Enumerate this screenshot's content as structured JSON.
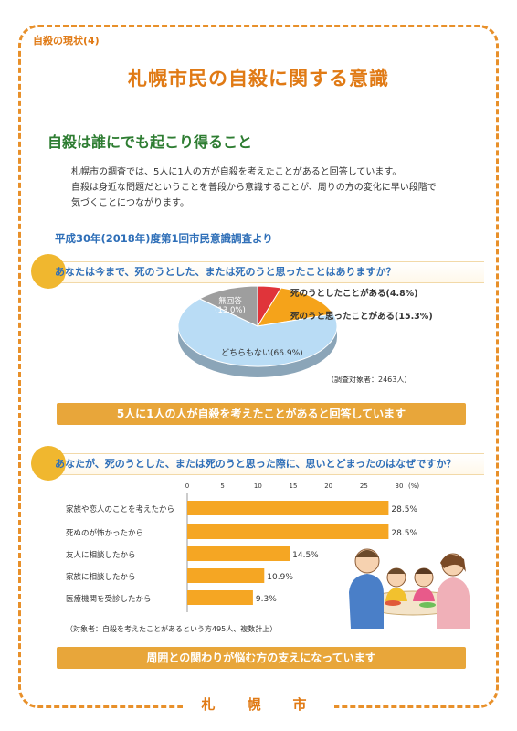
{
  "tag": "自殺の現状(4)",
  "title": "札幌市民の自殺に関する意識",
  "section_heading": "自殺は誰にでも起こり得ること",
  "intro": [
    "札幌市の調査では、5人に1人の方が自殺を考えたことがあると回答しています。",
    "自殺は身近な問題だということを普段から意識することが、周りの方の変化に早い段階で",
    "気づくことにつながります。"
  ],
  "survey_title": "平成30年(2018年)度第1回市民意識調査より",
  "q1": "あなたは今まで、死のうとした、または死のうと思ったことはありますか？",
  "q2": "あなたが、死のうとした、または死のうと思った際に、思いとどまったのはなぜですか？",
  "banner1": "5人に1人の人が自殺を考えたことがあると回答しています",
  "banner2": "周囲との関わりが悩む方の支えになっています",
  "pie_note": "（調査対象者：2463人）",
  "bar_note": "（対象者：自殺を考えたことがあるという方495人、複数計上）",
  "footer": "札　幌　市",
  "colors": {
    "accent": "#e07a15",
    "green": "#2e7d32",
    "blue": "#2f6fb8",
    "bar": "#f5a623",
    "pie_red": "#e0343a",
    "pie_orange": "#f5a31a",
    "pie_blue": "#b9dcf5",
    "pie_gray": "#9e9e9e"
  },
  "chart_data": [
    {
      "type": "pie",
      "slices": [
        {
          "label": "死のうとしたことがある",
          "value_label": "(4.8%)",
          "value": 4.8,
          "color": "#e0343a"
        },
        {
          "label": "死のうと思ったことがある",
          "value_label": "(15.3%)",
          "value": 15.3,
          "color": "#f5a31a"
        },
        {
          "label": "どちらもない",
          "value_label": "(66.9%)",
          "value": 66.9,
          "color": "#b9dcf5"
        },
        {
          "label": "無回答",
          "value_label": "(13.0%)",
          "value": 13.0,
          "color": "#9e9e9e"
        }
      ]
    },
    {
      "type": "bar",
      "orientation": "horizontal",
      "categories": [
        "家族や恋人のことを考えたから",
        "死ぬのが怖かったから",
        "友人に相談したから",
        "家族に相談したから",
        "医療機関を受診したから"
      ],
      "values": [
        28.5,
        28.5,
        14.5,
        10.9,
        9.3
      ],
      "value_labels": [
        "28.5%",
        "28.5%",
        "14.5%",
        "10.9%",
        "9.3%"
      ],
      "xlim": [
        0,
        30
      ],
      "ticks": [
        "0",
        "5",
        "10",
        "15",
        "20",
        "25",
        "30"
      ],
      "unit": "(%)"
    }
  ]
}
